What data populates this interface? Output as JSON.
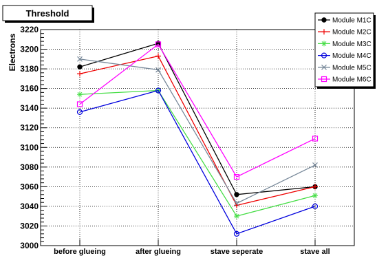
{
  "chart_data": {
    "type": "line",
    "title": "Threshold",
    "ylabel": "Electrons",
    "xlabel": "",
    "categories": [
      "before glueing",
      "after glueing",
      "stave seperate",
      "stave all"
    ],
    "ylim": [
      3000,
      3220
    ],
    "yticks": [
      3000,
      3020,
      3040,
      3060,
      3080,
      3100,
      3120,
      3140,
      3160,
      3180,
      3200,
      3220
    ],
    "grid": true,
    "legend_position": "top-right",
    "series": [
      {
        "name": "Module M1C",
        "color": "#000000",
        "marker": "filled-circle",
        "values": [
          3182,
          3206,
          3052,
          3060
        ]
      },
      {
        "name": "Module M2C",
        "color": "#ee0000",
        "marker": "plus",
        "values": [
          3175,
          3193,
          3041,
          3060
        ]
      },
      {
        "name": "Module M3C",
        "color": "#44dd44",
        "marker": "star",
        "values": [
          3154,
          3158,
          3030,
          3051
        ]
      },
      {
        "name": "Module M4C",
        "color": "#0000dd",
        "marker": "open-circle",
        "values": [
          3136,
          3158,
          3012,
          3040
        ]
      },
      {
        "name": "Module M5C",
        "color": "#778899",
        "marker": "cross",
        "values": [
          3190,
          3179,
          3043,
          3082
        ]
      },
      {
        "name": "Module M6C",
        "color": "#ff00ff",
        "marker": "open-square",
        "values": [
          3144,
          3205,
          3070,
          3109
        ]
      }
    ]
  }
}
